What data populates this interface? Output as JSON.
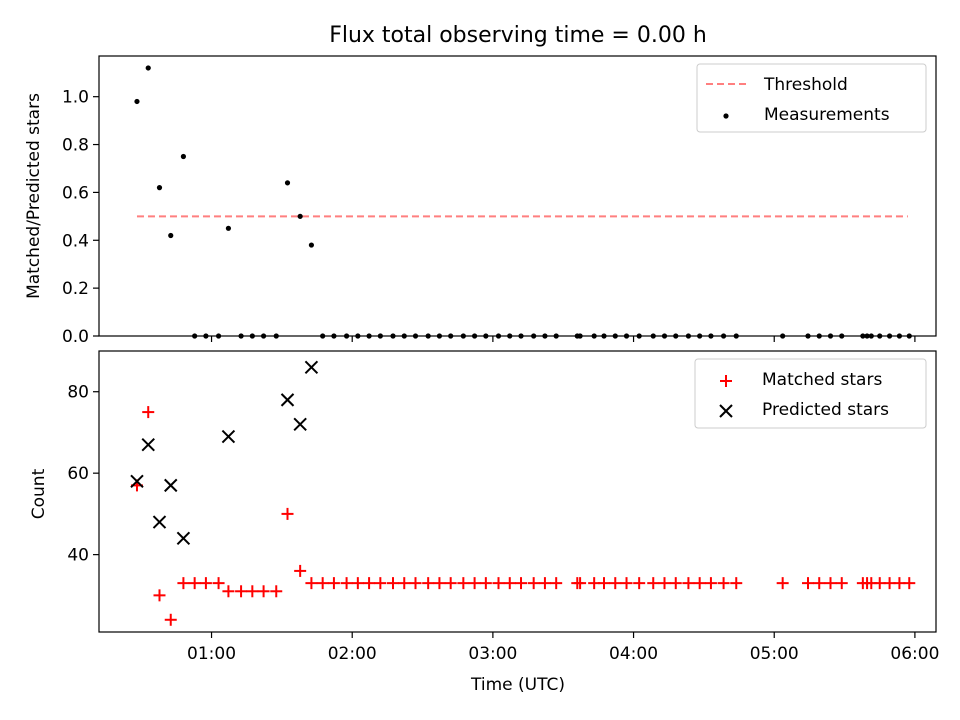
{
  "title": "Flux total observing time = 0.00 h",
  "colors": {
    "threshold": "#ff7f7f",
    "measurement": "#000000",
    "matched": "#ff0000",
    "predicted": "#000000"
  },
  "chart_data": [
    {
      "type": "scatter",
      "panel": "top",
      "ylabel": "Matched/Predicted stars",
      "ylim": [
        0,
        1.17
      ],
      "xlim": [
        0.2,
        6.15
      ],
      "yticks": [
        0.0,
        0.2,
        0.4,
        0.6,
        0.8,
        1.0
      ],
      "ytick_labels": [
        "0.0",
        "0.2",
        "0.4",
        "0.6",
        "0.8",
        "1.0"
      ],
      "legend": {
        "location": "top-right",
        "entries": [
          "Threshold",
          "Measurements"
        ]
      },
      "threshold": {
        "name": "Threshold",
        "y": 0.5,
        "x_start": 0.47,
        "x_end": 5.95,
        "style": "dashed"
      },
      "series": [
        {
          "name": "Measurements",
          "marker": "dot",
          "x": [
            0.47,
            0.55,
            0.63,
            0.71,
            0.8,
            1.12,
            1.54,
            1.63,
            1.71,
            0.88,
            0.96,
            1.05,
            1.21,
            1.29,
            1.37,
            1.46,
            1.79,
            1.87,
            1.96,
            2.04,
            2.12,
            2.2,
            2.29,
            2.37,
            2.45,
            2.54,
            2.62,
            2.7,
            2.79,
            2.87,
            2.95,
            3.04,
            3.12,
            3.2,
            3.29,
            3.37,
            3.45,
            3.6,
            3.62,
            3.72,
            3.79,
            3.87,
            3.95,
            4.04,
            4.14,
            4.22,
            4.3,
            4.39,
            4.47,
            4.55,
            4.64,
            4.73,
            5.06,
            5.24,
            5.32,
            5.4,
            5.48,
            5.63,
            5.66,
            5.69,
            5.75,
            5.82,
            5.89,
            5.96
          ],
          "y": [
            0.98,
            1.12,
            0.62,
            0.42,
            0.75,
            0.45,
            0.64,
            0.5,
            0.38,
            0,
            0,
            0,
            0,
            0,
            0,
            0,
            0,
            0,
            0,
            0,
            0,
            0,
            0,
            0,
            0,
            0,
            0,
            0,
            0,
            0,
            0,
            0,
            0,
            0,
            0,
            0,
            0,
            0,
            0,
            0,
            0,
            0,
            0,
            0,
            0,
            0,
            0,
            0,
            0,
            0,
            0,
            0,
            0,
            0,
            0,
            0,
            0,
            0,
            0,
            0,
            0,
            0,
            0,
            0
          ]
        }
      ]
    },
    {
      "type": "scatter",
      "panel": "bottom",
      "ylabel": "Count",
      "xlabel": "Time (UTC)",
      "ylim": [
        21,
        90
      ],
      "xlim": [
        0.2,
        6.15
      ],
      "yticks": [
        40,
        60,
        80
      ],
      "ytick_labels": [
        "40",
        "60",
        "80"
      ],
      "xticks": [
        1,
        2,
        3,
        4,
        5,
        6
      ],
      "xtick_labels": [
        "01:00",
        "02:00",
        "03:00",
        "04:00",
        "05:00",
        "06:00"
      ],
      "legend": {
        "location": "top-right",
        "entries": [
          "Matched stars",
          "Predicted stars"
        ]
      },
      "series": [
        {
          "name": "Matched stars",
          "marker": "plus",
          "x": [
            0.47,
            0.55,
            0.63,
            0.71,
            0.8,
            1.12,
            1.54,
            1.63,
            1.71,
            0.88,
            0.96,
            1.05,
            1.21,
            1.29,
            1.37,
            1.46,
            1.79,
            1.87,
            1.96,
            2.04,
            2.12,
            2.2,
            2.29,
            2.37,
            2.45,
            2.54,
            2.62,
            2.7,
            2.79,
            2.87,
            2.95,
            3.04,
            3.12,
            3.2,
            3.29,
            3.37,
            3.45,
            3.6,
            3.62,
            3.72,
            3.79,
            3.87,
            3.95,
            4.04,
            4.14,
            4.22,
            4.3,
            4.39,
            4.47,
            4.55,
            4.64,
            4.73,
            5.06,
            5.24,
            5.32,
            5.4,
            5.48,
            5.63,
            5.66,
            5.69,
            5.75,
            5.82,
            5.89,
            5.96
          ],
          "y": [
            57,
            75,
            30,
            24,
            33,
            31,
            50,
            36,
            33,
            33,
            33,
            33,
            31,
            31,
            31,
            31,
            33,
            33,
            33,
            33,
            33,
            33,
            33,
            33,
            33,
            33,
            33,
            33,
            33,
            33,
            33,
            33,
            33,
            33,
            33,
            33,
            33,
            33,
            33,
            33,
            33,
            33,
            33,
            33,
            33,
            33,
            33,
            33,
            33,
            33,
            33,
            33,
            33,
            33,
            33,
            33,
            33,
            33,
            33,
            33,
            33,
            33,
            33,
            33
          ]
        },
        {
          "name": "Predicted stars",
          "marker": "x",
          "x": [
            0.47,
            0.55,
            0.63,
            0.71,
            0.8,
            1.12,
            1.54,
            1.63,
            1.71
          ],
          "y": [
            58,
            67,
            48,
            57,
            44,
            69,
            78,
            72,
            86
          ]
        }
      ]
    }
  ]
}
